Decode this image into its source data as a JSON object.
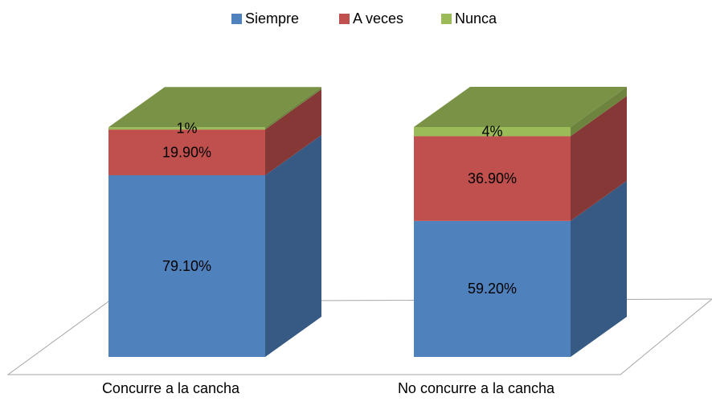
{
  "chart_data": {
    "type": "bar3d_stacked",
    "categories": [
      "Concurre a la cancha",
      "No concurre a la cancha"
    ],
    "series": [
      {
        "name": "Siempre",
        "color": "#4f81bd",
        "values": [
          79.1,
          59.2
        ],
        "value_labels": [
          "79.10%",
          "59.20%"
        ]
      },
      {
        "name": "A veces",
        "color": "#c0504d",
        "values": [
          19.9,
          36.9
        ],
        "value_labels": [
          "19.90%",
          "36.90%"
        ]
      },
      {
        "name": "Nunca",
        "color": "#9bbb59",
        "values": [
          1,
          4
        ],
        "value_labels": [
          "1%",
          "4%"
        ]
      }
    ],
    "legend": "top"
  }
}
